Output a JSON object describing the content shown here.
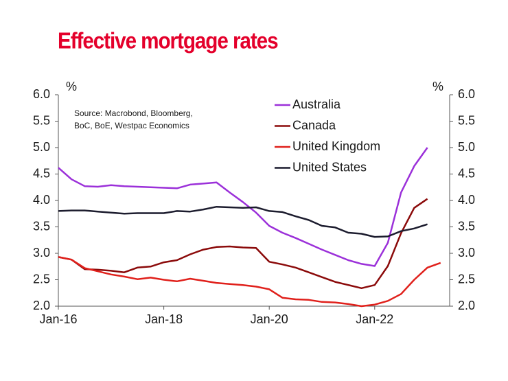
{
  "chart_data": {
    "type": "line",
    "title": "Effective mortgage rates",
    "y_label": "%",
    "y2_label": "%",
    "annotations": [
      "Source: Macrobond, Bloomberg,",
      "BoC, BoE, Westpac Economics"
    ],
    "categories": [
      "Jan-16",
      null,
      null,
      null,
      null,
      null,
      null,
      null,
      "Jan-18",
      null,
      null,
      null,
      null,
      null,
      null,
      null,
      "Jan-20",
      null,
      null,
      null,
      null,
      null,
      null,
      null,
      "Jan-22",
      null,
      null,
      null,
      null,
      null
    ],
    "series": [
      {
        "name": "Australia",
        "color": "#9b30d9",
        "values": [
          4.62,
          4.4,
          4.27,
          4.26,
          4.29,
          4.27,
          4.26,
          4.25,
          4.24,
          4.23,
          4.3,
          4.32,
          4.34,
          4.15,
          3.97,
          3.77,
          3.52,
          3.39,
          3.29,
          3.18,
          3.07,
          2.97,
          2.87,
          2.8,
          2.76,
          3.2,
          4.15,
          4.65,
          5.0,
          null
        ]
      },
      {
        "name": "Canada",
        "color": "#8b0a0a",
        "values": [
          2.93,
          2.88,
          2.7,
          2.69,
          2.67,
          2.64,
          2.73,
          2.75,
          2.83,
          2.87,
          2.98,
          3.07,
          3.12,
          3.13,
          3.11,
          3.1,
          2.84,
          2.79,
          2.73,
          2.64,
          2.55,
          2.46,
          2.4,
          2.34,
          2.4,
          2.76,
          3.38,
          3.86,
          4.03,
          null
        ]
      },
      {
        "name": "United Kingdom",
        "color": "#e0201b",
        "values": [
          2.93,
          2.88,
          2.72,
          2.66,
          2.6,
          2.56,
          2.51,
          2.54,
          2.5,
          2.47,
          2.52,
          2.48,
          2.44,
          2.42,
          2.4,
          2.37,
          2.32,
          2.16,
          2.13,
          2.12,
          2.08,
          2.07,
          2.04,
          2.0,
          2.03,
          2.1,
          2.23,
          2.5,
          2.73,
          2.82
        ]
      },
      {
        "name": "United States",
        "color": "#1c1c2e",
        "values": [
          3.8,
          3.81,
          3.81,
          3.79,
          3.77,
          3.75,
          3.76,
          3.76,
          3.76,
          3.8,
          3.79,
          3.83,
          3.88,
          3.87,
          3.86,
          3.87,
          3.8,
          3.78,
          3.7,
          3.63,
          3.52,
          3.49,
          3.39,
          3.37,
          3.31,
          3.32,
          3.42,
          3.47,
          3.55,
          null
        ]
      }
    ],
    "ylim": [
      2.0,
      6.0
    ],
    "yticks": [
      {
        "value": 2,
        "label": "2.0"
      },
      {
        "value": 2.5,
        "label": "2.5"
      },
      {
        "value": 3,
        "label": "3.0"
      },
      {
        "value": 3.5,
        "label": "3.5"
      },
      {
        "value": 4,
        "label": "4.0"
      },
      {
        "value": 4.5,
        "label": "4.5"
      },
      {
        "value": 5,
        "label": "5.0"
      },
      {
        "value": 5.5,
        "label": "5.5"
      },
      {
        "value": 6,
        "label": "6.0"
      }
    ],
    "y2lim": [
      2.0,
      6.0
    ],
    "y2ticks": [
      {
        "value": 2,
        "label": "2.0"
      },
      {
        "value": 2.5,
        "label": "2.5"
      },
      {
        "value": 3,
        "label": "3.0"
      },
      {
        "value": 3.5,
        "label": "3.5"
      },
      {
        "value": 4,
        "label": "4.0"
      },
      {
        "value": 4.5,
        "label": "4.5"
      },
      {
        "value": 5,
        "label": "5.0"
      },
      {
        "value": 5.5,
        "label": "5.5"
      },
      {
        "value": 6,
        "label": "6.0"
      }
    ],
    "title_color": "#e4002b",
    "grid": false
  }
}
